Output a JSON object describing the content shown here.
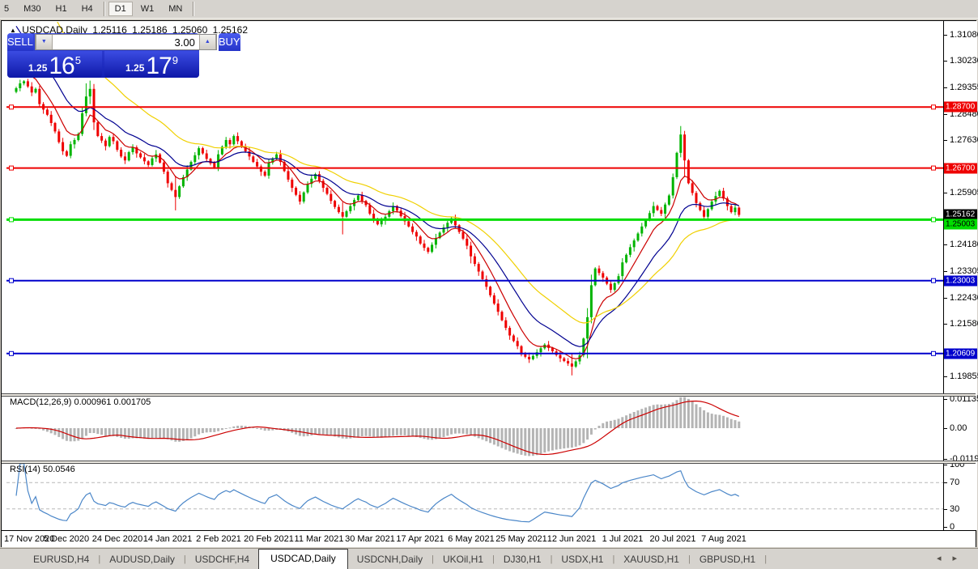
{
  "toolbar": {
    "items": [
      {
        "label": "5"
      },
      {
        "label": "M30"
      },
      {
        "label": "H1"
      },
      {
        "label": "H4"
      },
      {
        "label": "D1",
        "active": true
      },
      {
        "label": "W1"
      },
      {
        "label": "MN"
      }
    ]
  },
  "header": {
    "collapse_icon": "▲",
    "symbol": "USDCAD,Daily",
    "open": "1.25116",
    "high": "1.25186",
    "low": "1.25060",
    "close": "1.25162"
  },
  "trade_panel": {
    "sell_label": "SELL",
    "buy_label": "BUY",
    "volume": "3.00",
    "down_icon": "▼",
    "up_icon": "▲",
    "sell_price": {
      "prefix": "1.25",
      "big": "16",
      "sup": "5"
    },
    "buy_price": {
      "prefix": "1.25",
      "big": "17",
      "sup": "9"
    }
  },
  "price_axis": {
    "ticks": [
      {
        "label": "1.31080",
        "price": 1.3108
      },
      {
        "label": "1.30230",
        "price": 1.3023
      },
      {
        "label": "1.29355",
        "price": 1.29355
      },
      {
        "label": "1.28480",
        "price": 1.2848
      },
      {
        "label": "1.27630",
        "price": 1.2763
      },
      {
        "label": "1.25905",
        "price": 1.25905
      },
      {
        "label": "1.24180",
        "price": 1.2418
      },
      {
        "label": "1.23305",
        "price": 1.23305
      },
      {
        "label": "1.22430",
        "price": 1.2243
      },
      {
        "label": "1.21580",
        "price": 1.2158
      },
      {
        "label": "1.19855",
        "price": 1.19855
      }
    ],
    "badges": [
      {
        "label": "1.28700",
        "price": 1.287,
        "bg": "#ee0000",
        "fg": "#ffffff"
      },
      {
        "label": "1.26700",
        "price": 1.267,
        "bg": "#ee0000",
        "fg": "#ffffff"
      },
      {
        "label": "1.25162",
        "price": 1.25162,
        "bg": "#000000",
        "fg": "#ffffff"
      },
      {
        "label": "1.25003",
        "price": 1.25003,
        "bg": "#00dd00",
        "fg": "#000000"
      },
      {
        "label": "1.23003",
        "price": 1.23003,
        "bg": "#0000cc",
        "fg": "#ffffff"
      },
      {
        "label": "1.20609",
        "price": 1.20609,
        "bg": "#0000cc",
        "fg": "#ffffff"
      }
    ]
  },
  "hlines": [
    {
      "price": 1.287,
      "color": "#ee0000",
      "width": 2
    },
    {
      "price": 1.267,
      "color": "#ee0000",
      "width": 2
    },
    {
      "price": 1.25003,
      "color": "#00dd00",
      "width": 3
    },
    {
      "price": 1.23003,
      "color": "#0000cc",
      "width": 2
    },
    {
      "price": 1.20609,
      "color": "#0000cc",
      "width": 2
    }
  ],
  "indicators": {
    "macd": {
      "label": "MACD(12,26,9) 0.000961 0.001705",
      "ticks": [
        {
          "label": "0.01135",
          "value": 0.01135
        },
        {
          "label": "0.00",
          "value": 0
        },
        {
          "label": "-0.01190",
          "value": -0.0119
        }
      ],
      "hist_color": "#b4b4b4",
      "signal_color": "#cc0000",
      "scale": 0.0125
    },
    "rsi": {
      "label": "RSI(14) 50.0546",
      "ticks": [
        {
          "label": "100",
          "value": 100
        },
        {
          "label": "70",
          "value": 70
        },
        {
          "label": "30",
          "value": 30
        },
        {
          "label": "0",
          "value": 0
        }
      ],
      "levels": [
        70,
        30
      ],
      "color": "#4a86c8"
    }
  },
  "tabs": {
    "scroll_left_icon": "◂",
    "scroll_right_icon": "▸",
    "items": [
      {
        "label": "EURUSD,H4"
      },
      {
        "label": "AUDUSD,Daily"
      },
      {
        "label": "USDCHF,H4"
      },
      {
        "label": "USDCAD,Daily",
        "active": true
      },
      {
        "label": "USDCNH,Daily"
      },
      {
        "label": "UKOil,H1"
      },
      {
        "label": "DJ30,H1"
      },
      {
        "label": "USDX,H1"
      },
      {
        "label": "XAUUSD,H1"
      },
      {
        "label": "GBPUSD,H1"
      }
    ]
  },
  "chart_data": {
    "type": "candlestick",
    "symbol": "USDCAD",
    "timeframe": "Daily",
    "price_top": 1.315,
    "price_bottom": 1.193,
    "bull_color": "#00b400",
    "bear_color": "#ef0000",
    "dates": [
      "17 Nov 2020",
      "5 Dec 2020",
      "24 Dec 2020",
      "14 Jan 2021",
      "2 Feb 2021",
      "20 Feb 2021",
      "11 Mar 2021",
      "30 Mar 2021",
      "17 Apr 2021",
      "6 May 2021",
      "25 May 2021",
      "12 Jun 2021",
      "1 Jul 2021",
      "20 Jul 2021",
      "7 Aug 2021"
    ],
    "date_tick_step": 13,
    "first_open": 1.292,
    "closes": [
      1.2932,
      1.2948,
      1.2955,
      1.2938,
      1.2918,
      1.293,
      1.288,
      1.2862,
      1.2845,
      1.2818,
      1.279,
      1.2755,
      1.2725,
      1.271,
      1.2748,
      1.2762,
      1.2782,
      1.285,
      1.2905,
      1.293,
      1.282,
      1.2775,
      1.276,
      1.2742,
      1.2772,
      1.2758,
      1.273,
      1.2708,
      1.2695,
      1.2722,
      1.2738,
      1.2718,
      1.2705,
      1.2692,
      1.268,
      1.2702,
      1.2715,
      1.2688,
      1.2658,
      1.262,
      1.2598,
      1.2575,
      1.261,
      1.264,
      1.2665,
      1.269,
      1.2712,
      1.2735,
      1.2718,
      1.27,
      1.2685,
      1.2672,
      1.2715,
      1.274,
      1.2762,
      1.2748,
      1.2775,
      1.2758,
      1.2742,
      1.2725,
      1.2708,
      1.269,
      1.2675,
      1.2658,
      1.2645,
      1.2688,
      1.2702,
      1.2715,
      1.269,
      1.266,
      1.2632,
      1.2605,
      1.2582,
      1.256,
      1.259,
      1.2618,
      1.2635,
      1.265,
      1.2628,
      1.2605,
      1.2585,
      1.2562,
      1.2542,
      1.2525,
      1.251,
      1.2528,
      1.2545,
      1.2565,
      1.258,
      1.2562,
      1.2548,
      1.252,
      1.2502,
      1.2485,
      1.2498,
      1.251,
      1.2528,
      1.2545,
      1.253,
      1.2512,
      1.2495,
      1.2478,
      1.246,
      1.2445,
      1.2422,
      1.2408,
      1.2395,
      1.2418,
      1.244,
      1.2458,
      1.2475,
      1.249,
      1.2505,
      1.2482,
      1.246,
      1.2438,
      1.2415,
      1.238,
      1.2355,
      1.233,
      1.2305,
      1.228,
      1.2252,
      1.2225,
      1.2198,
      1.217,
      1.2145,
      1.212,
      1.2102,
      1.2085,
      1.2058,
      1.205,
      1.2042,
      1.2053,
      1.2065,
      1.2078,
      1.209,
      1.2079,
      1.2068,
      1.2056,
      1.2045,
      1.2036,
      1.2028,
      1.2018,
      1.2035,
      1.2055,
      1.211,
      1.218,
      1.2285,
      1.234,
      1.2325,
      1.231,
      1.229,
      1.227,
      1.2292,
      1.2315,
      1.236,
      1.2385,
      1.241,
      1.2432,
      1.2455,
      1.2478,
      1.25,
      1.2522,
      1.2545,
      1.2532,
      1.252,
      1.255,
      1.258,
      1.264,
      1.272,
      1.278,
      1.2695,
      1.262,
      1.2588,
      1.2555,
      1.2532,
      1.251,
      1.2535,
      1.256,
      1.2578,
      1.2595,
      1.257,
      1.2545,
      1.2525,
      1.254,
      1.25162
    ],
    "wick_pattern": [
      0.001,
      0.0024,
      0.0007,
      0.0016,
      0.0028,
      0.0009,
      0.002,
      0.0013
    ],
    "wick_overrides": {
      "17": [
        1.2868,
        1.2775
      ],
      "18": [
        1.2948,
        1.284
      ],
      "19": [
        1.2957,
        1.288
      ],
      "20": [
        1.2946,
        1.2795
      ],
      "41": [
        1.2645,
        1.2531
      ],
      "84": [
        1.2558,
        1.2452
      ],
      "117": [
        1.2428,
        1.2357
      ],
      "143": [
        1.206,
        1.1989
      ],
      "147": [
        1.221,
        1.2045
      ],
      "148": [
        1.232,
        1.216
      ],
      "171": [
        1.2808,
        1.2705
      ],
      "172": [
        1.2792,
        1.264
      ]
    },
    "moving_averages": [
      {
        "name": "ma-fast",
        "period": 8,
        "seed": 1.306,
        "color": "#cc0000"
      },
      {
        "name": "ma-mid",
        "period": 18,
        "seed": 1.316,
        "color": "#000090"
      },
      {
        "name": "ma-slow",
        "period": 34,
        "seed": 1.342,
        "color": "#f0d000"
      }
    ],
    "macd_params": {
      "fast": 12,
      "slow": 26,
      "signal": 9
    },
    "rsi_params": {
      "period": 14
    }
  }
}
